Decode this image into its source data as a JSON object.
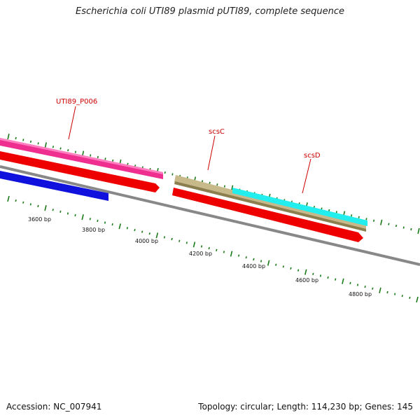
{
  "title": "Escherichia coli UTI89 plasmid pUTI89, complete sequence",
  "footer": {
    "accession": "Accession: NC_007941",
    "summary": "Topology: circular; Length: 114,230 bp; Genes: 145"
  },
  "colors": {
    "tick": "#1a7a1a",
    "backbone": "#888888",
    "gene_label": "#cc0000",
    "magenta_feature": "#ee2f8f",
    "red_feature": "#ee0000",
    "blue_feature": "#1111dd",
    "tan_feature": "#c8b98a",
    "cyan_feature": "#22eeee"
  },
  "ruler": {
    "labels": [
      "3600 bp",
      "3800 bp",
      "4000 bp",
      "4200 bp",
      "4400 bp",
      "4600 bp",
      "4800 bp"
    ]
  },
  "gene_labels": [
    "UTI89_P006",
    "scsC",
    "scsD"
  ]
}
